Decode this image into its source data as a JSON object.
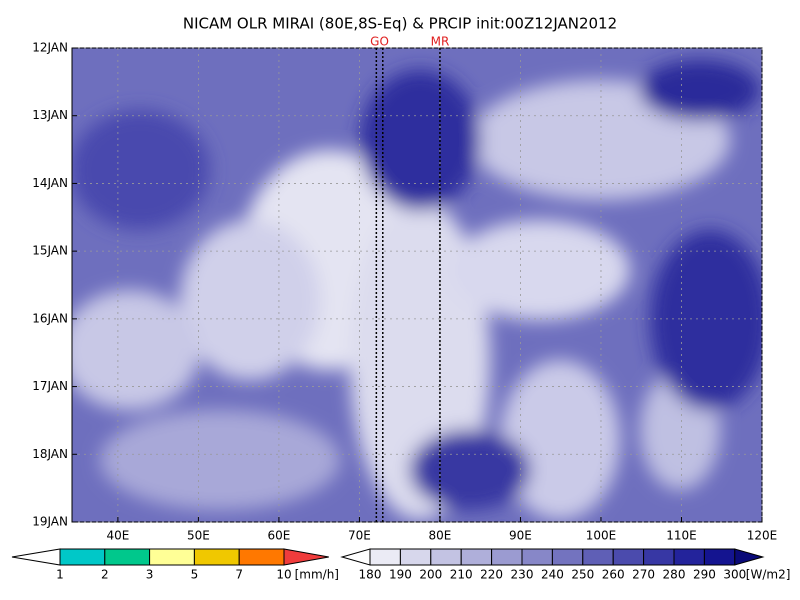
{
  "chart_data": {
    "type": "hovmoller",
    "title": "NICAM OLR MIRAI (80E,8S-Eq) & PRCIP init:00Z12JAN2012",
    "xlim": [
      34.3,
      120
    ],
    "xticks": [
      {
        "value": 40,
        "label": "40E"
      },
      {
        "value": 50,
        "label": "50E"
      },
      {
        "value": 60,
        "label": "60E"
      },
      {
        "value": 70,
        "label": "70E"
      },
      {
        "value": 80,
        "label": "80E"
      },
      {
        "value": 90,
        "label": "90E"
      },
      {
        "value": 100,
        "label": "100E"
      },
      {
        "value": 110,
        "label": "110E"
      },
      {
        "value": 120,
        "label": "120E"
      }
    ],
    "ylim": [
      12,
      19
    ],
    "yticks": [
      {
        "value": 12,
        "label": "12JAN"
      },
      {
        "value": 13,
        "label": "13JAN"
      },
      {
        "value": 14,
        "label": "14JAN"
      },
      {
        "value": 15,
        "label": "15JAN"
      },
      {
        "value": 16,
        "label": "16JAN"
      },
      {
        "value": 17,
        "label": "17JAN"
      },
      {
        "value": 18,
        "label": "18JAN"
      },
      {
        "value": 19,
        "label": "19JAN"
      }
    ],
    "vlines": [
      {
        "name": "GO",
        "x": [
          72.1,
          72.9
        ]
      },
      {
        "name": "MR",
        "x": [
          80
        ]
      }
    ],
    "precip_colorbar": {
      "levels": [
        1,
        2,
        3,
        5,
        7,
        10
      ],
      "unit": "[mm/h]",
      "colors": [
        "#ffffff",
        "#00c8c8",
        "#00c88c",
        "#ffff96",
        "#f0c800",
        "#ff7800",
        "#f03c3c"
      ]
    },
    "olr_colorbar": {
      "levels": [
        180,
        190,
        200,
        210,
        220,
        230,
        240,
        250,
        260,
        270,
        280,
        290,
        300
      ],
      "unit": "[W/m2]",
      "colors": [
        "#ffffff",
        "#ebebf5",
        "#d7d7ec",
        "#c3c3e3",
        "#afafda",
        "#9b9bd1",
        "#8787c8",
        "#7373bf",
        "#5f5fb6",
        "#4b4bad",
        "#3737a4",
        "#23239b",
        "#141490",
        "#0a0a78"
      ]
    }
  }
}
